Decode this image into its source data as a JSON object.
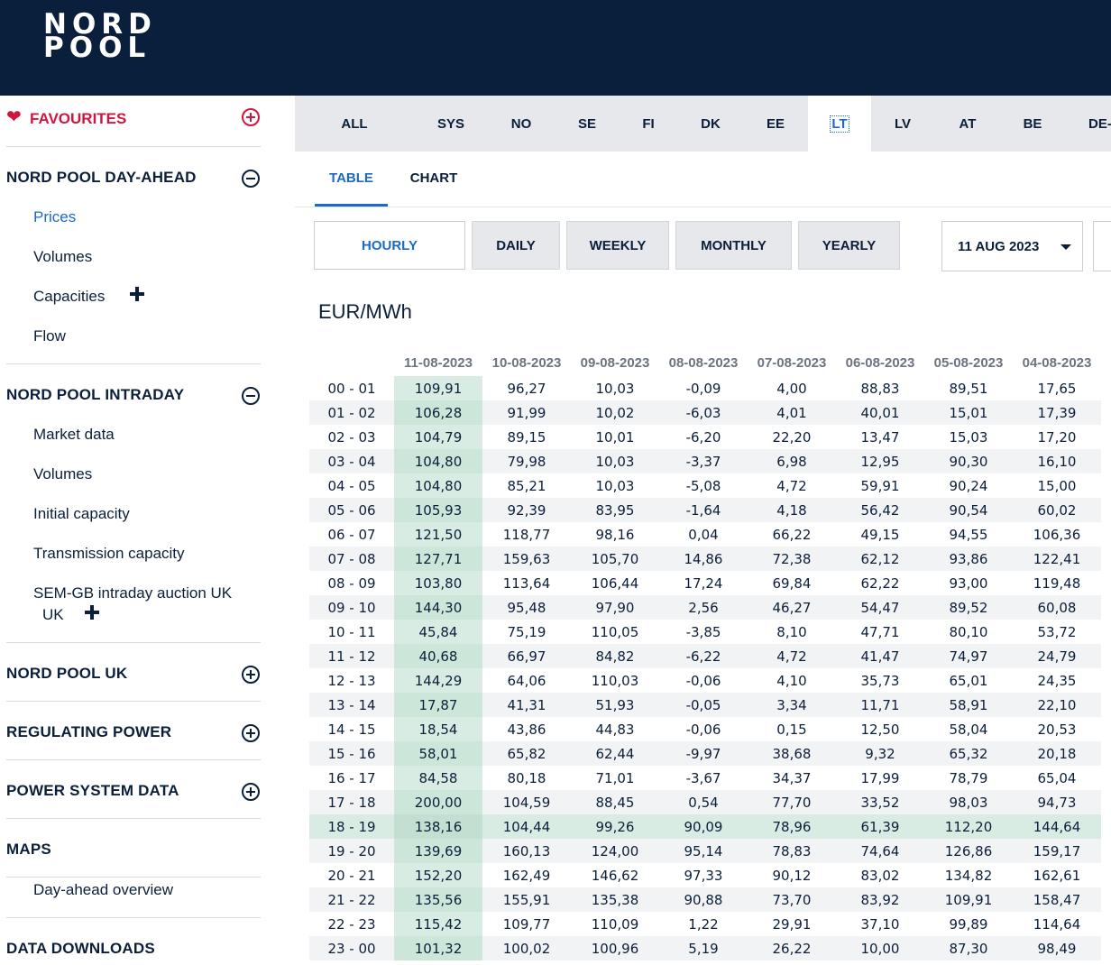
{
  "logo": {
    "line1": "NORD",
    "line2": "POOL"
  },
  "sidebar": {
    "favourites": "FAVOURITES",
    "day_ahead": {
      "title": "NORD POOL DAY-AHEAD",
      "items": [
        "Prices",
        "Volumes",
        "Capacities",
        "Flow"
      ]
    },
    "intraday": {
      "title": "NORD POOL INTRADAY",
      "items": [
        "Market data",
        "Volumes",
        "Initial capacity",
        "Transmission capacity",
        "SEM-GB intraday auction UK",
        "UK"
      ]
    },
    "uk": "NORD POOL UK",
    "regulating": "REGULATING POWER",
    "system": "POWER SYSTEM DATA",
    "maps": {
      "title": "MAPS",
      "items": [
        "Day-ahead overview"
      ]
    },
    "downloads": "DATA DOWNLOADS"
  },
  "area_tabs": [
    "ALL",
    "SYS",
    "NO",
    "SE",
    "FI",
    "DK",
    "EE",
    "LT",
    "LV",
    "AT",
    "BE",
    "DE-"
  ],
  "active_area": "LT",
  "view_tabs": [
    "TABLE",
    "CHART"
  ],
  "period_buttons": [
    "HOURLY",
    "DAILY",
    "WEEKLY",
    "MONTHLY",
    "YEARLY"
  ],
  "date_selected": "11 AUG 2023",
  "unit": "EUR/MWh",
  "table": {
    "columns": [
      "11-08-2023",
      "10-08-2023",
      "09-08-2023",
      "08-08-2023",
      "07-08-2023",
      "06-08-2023",
      "05-08-2023",
      "04-08-2023"
    ],
    "rows": [
      {
        "hour": "00 - 01",
        "values": [
          "109,91",
          "96,27",
          "10,03",
          "-0,09",
          "4,00",
          "88,83",
          "89,51",
          "17,65"
        ]
      },
      {
        "hour": "01 - 02",
        "values": [
          "106,28",
          "91,99",
          "10,02",
          "-6,03",
          "4,01",
          "40,01",
          "15,01",
          "17,39"
        ]
      },
      {
        "hour": "02 - 03",
        "values": [
          "104,79",
          "89,15",
          "10,01",
          "-6,20",
          "22,20",
          "13,47",
          "15,03",
          "17,20"
        ]
      },
      {
        "hour": "03 - 04",
        "values": [
          "104,80",
          "79,98",
          "10,03",
          "-3,37",
          "6,98",
          "12,95",
          "90,30",
          "16,10"
        ]
      },
      {
        "hour": "04 - 05",
        "values": [
          "104,80",
          "85,21",
          "10,03",
          "-5,08",
          "4,72",
          "59,91",
          "90,24",
          "15,00"
        ]
      },
      {
        "hour": "05 - 06",
        "values": [
          "105,93",
          "92,39",
          "83,95",
          "-1,64",
          "4,18",
          "56,42",
          "90,54",
          "60,02"
        ]
      },
      {
        "hour": "06 - 07",
        "values": [
          "121,50",
          "118,77",
          "98,16",
          "0,04",
          "66,22",
          "49,15",
          "94,55",
          "106,36"
        ]
      },
      {
        "hour": "07 - 08",
        "values": [
          "127,71",
          "159,63",
          "105,70",
          "14,86",
          "72,38",
          "62,12",
          "93,86",
          "122,41"
        ]
      },
      {
        "hour": "08 - 09",
        "values": [
          "103,80",
          "113,64",
          "106,44",
          "17,24",
          "69,84",
          "62,22",
          "93,00",
          "119,48"
        ]
      },
      {
        "hour": "09 - 10",
        "values": [
          "144,30",
          "95,48",
          "97,90",
          "2,56",
          "46,27",
          "54,47",
          "89,52",
          "60,08"
        ]
      },
      {
        "hour": "10 - 11",
        "values": [
          "45,84",
          "75,19",
          "110,05",
          "-3,85",
          "8,10",
          "47,71",
          "80,10",
          "53,72"
        ]
      },
      {
        "hour": "11 - 12",
        "values": [
          "40,68",
          "66,97",
          "84,82",
          "-6,22",
          "4,72",
          "41,47",
          "74,97",
          "24,79"
        ]
      },
      {
        "hour": "12 - 13",
        "values": [
          "144,29",
          "64,06",
          "110,03",
          "-0,06",
          "4,10",
          "35,73",
          "65,01",
          "24,35"
        ]
      },
      {
        "hour": "13 - 14",
        "values": [
          "17,87",
          "41,31",
          "51,93",
          "-0,05",
          "3,34",
          "11,71",
          "58,91",
          "22,10"
        ]
      },
      {
        "hour": "14 - 15",
        "values": [
          "18,54",
          "43,86",
          "44,83",
          "-0,06",
          "0,15",
          "12,50",
          "58,04",
          "20,53"
        ]
      },
      {
        "hour": "15 - 16",
        "values": [
          "58,01",
          "65,82",
          "62,44",
          "-9,97",
          "38,68",
          "9,32",
          "65,32",
          "20,18"
        ]
      },
      {
        "hour": "16 - 17",
        "values": [
          "84,58",
          "80,18",
          "71,01",
          "-3,67",
          "34,37",
          "17,99",
          "78,79",
          "65,04"
        ]
      },
      {
        "hour": "17 - 18",
        "values": [
          "200,00",
          "104,59",
          "88,45",
          "0,54",
          "77,70",
          "33,52",
          "98,03",
          "94,73"
        ]
      },
      {
        "hour": "18 - 19",
        "values": [
          "138,16",
          "104,44",
          "99,26",
          "90,09",
          "78,96",
          "61,39",
          "112,20",
          "144,64"
        ]
      },
      {
        "hour": "19 - 20",
        "values": [
          "139,69",
          "160,13",
          "124,00",
          "95,14",
          "78,83",
          "74,64",
          "126,86",
          "159,17"
        ]
      },
      {
        "hour": "20 - 21",
        "values": [
          "152,20",
          "162,49",
          "146,62",
          "97,33",
          "90,12",
          "83,02",
          "134,82",
          "162,61"
        ]
      },
      {
        "hour": "21 - 22",
        "values": [
          "135,56",
          "155,91",
          "135,38",
          "90,88",
          "73,70",
          "83,92",
          "109,91",
          "158,47"
        ]
      },
      {
        "hour": "22 - 23",
        "values": [
          "115,42",
          "109,77",
          "110,09",
          "1,22",
          "29,91",
          "37,10",
          "99,89",
          "114,64"
        ]
      },
      {
        "hour": "23 - 00",
        "values": [
          "101,32",
          "100,02",
          "100,96",
          "5,19",
          "26,22",
          "10,00",
          "87,30",
          "98,49"
        ]
      }
    ]
  }
}
